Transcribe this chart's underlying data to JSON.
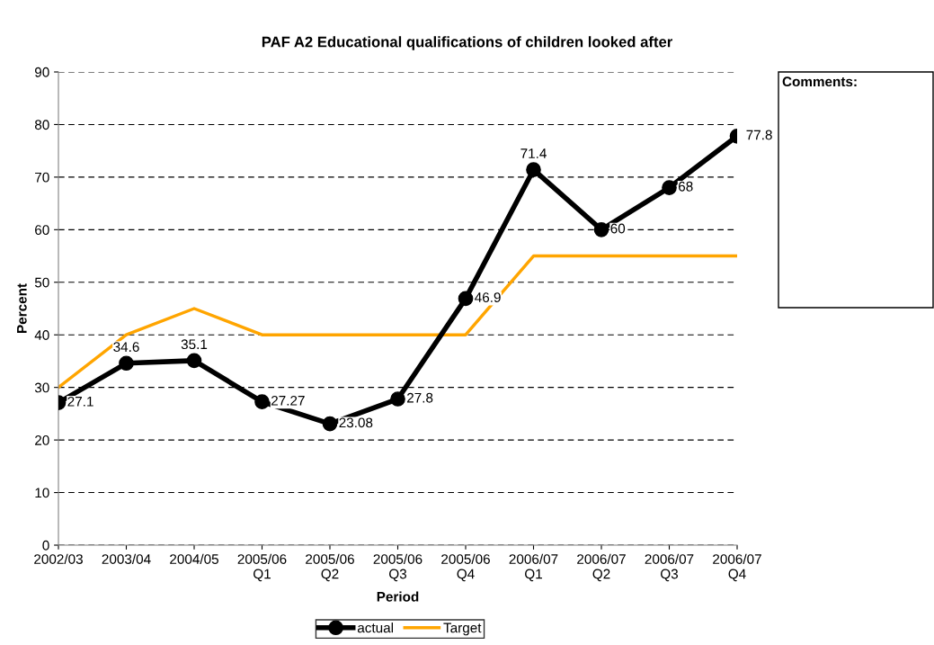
{
  "chart_data": {
    "type": "line",
    "title": "PAF A2 Educational qualifications of children looked after",
    "xlabel": "Period",
    "ylabel": "Percent",
    "categories": [
      "2002/03",
      "2003/04",
      "2004/05",
      "2005/06\nQ1",
      "2005/06\nQ2",
      "2005/06\nQ3",
      "2005/06\nQ4",
      "2006/07\nQ1",
      "2006/07\nQ2",
      "2006/07\nQ3",
      "2006/07\nQ4"
    ],
    "series": [
      {
        "name": "actual",
        "color": "#000000",
        "marker": "circle",
        "values": [
          27.1,
          34.6,
          35.1,
          27.27,
          23.08,
          27.8,
          46.9,
          71.4,
          60,
          68,
          77.8
        ],
        "value_labels": [
          "27.1",
          "34.6",
          "35.1",
          "27.27",
          "23.08",
          "27.8",
          "46.9",
          "71.4",
          "60",
          "68",
          "77.8"
        ]
      },
      {
        "name": "Target",
        "color": "#ffa500",
        "marker": "none",
        "values": [
          30,
          40,
          45,
          40,
          40,
          40,
          40,
          55,
          55,
          55,
          55
        ]
      }
    ],
    "ylim": [
      0,
      90
    ],
    "yticks": [
      0,
      10,
      20,
      30,
      40,
      50,
      60,
      70,
      80,
      90
    ],
    "grid": "y",
    "legend": "bottom",
    "annotations": [
      "Comments:"
    ]
  }
}
